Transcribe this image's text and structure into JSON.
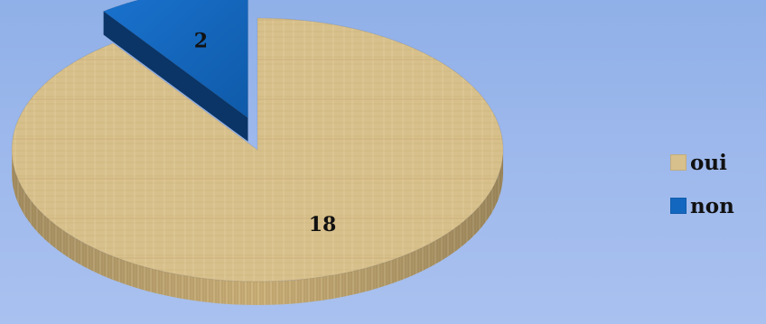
{
  "chart_data": {
    "type": "pie",
    "categories": [
      "oui",
      "non"
    ],
    "values": [
      18,
      2
    ],
    "data_labels": [
      "18",
      "2"
    ],
    "colors": [
      "#d8c08c",
      "#1467bf"
    ],
    "legend_position": "right",
    "style": "3d-exploded"
  },
  "legend": {
    "items": [
      {
        "label": "oui",
        "color": "#d8c08c"
      },
      {
        "label": "non",
        "color": "#1467bf"
      }
    ]
  }
}
